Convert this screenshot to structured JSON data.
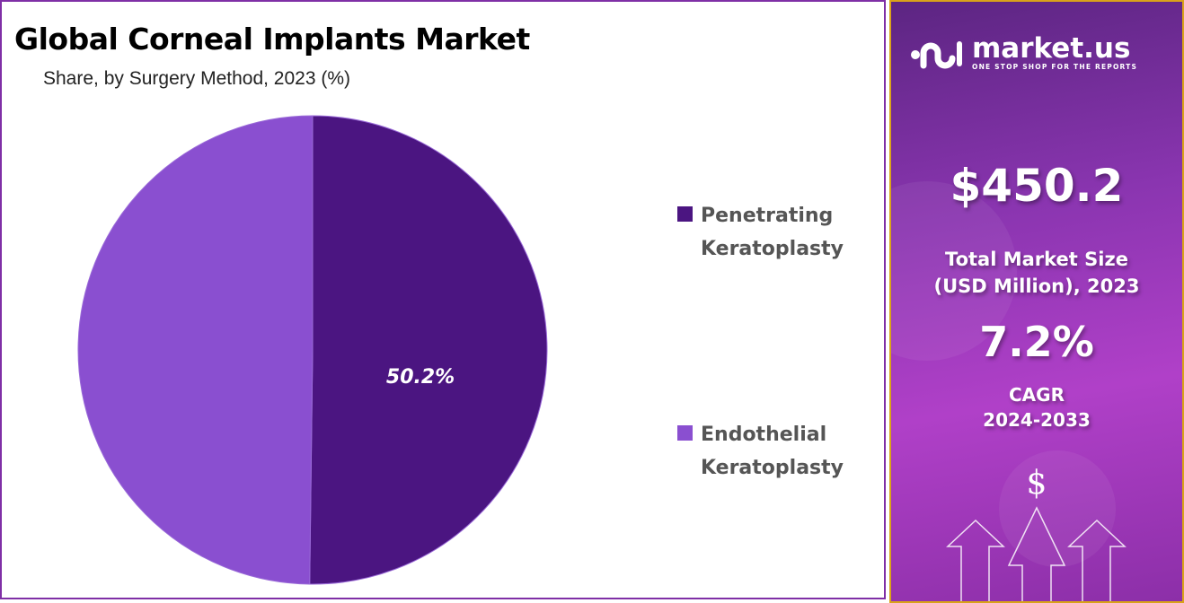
{
  "chart_data": {
    "type": "pie",
    "title": "Global Corneal Implants Market",
    "subtitle": "Share, by Surgery Method, 2023 (%)",
    "slices": [
      {
        "name": "Penetrating Keratoplasty",
        "value": 50.2,
        "label": "50.2%",
        "color": "#4b1581"
      },
      {
        "name": "Endothelial Keratoplasty",
        "value": 49.8,
        "color": "#8a4fd0"
      }
    ],
    "legend_placement": "right",
    "start_angle": "top, clockwise"
  },
  "side_panel": {
    "brand": "market.us",
    "tagline": "ONE STOP SHOP FOR THE REPORTS",
    "market_value": "$450.2",
    "market_value_label_1": "Total Market Size",
    "market_value_label_2": "(USD Million), 2023",
    "cagr": "7.2%",
    "cagr_label_1": "CAGR",
    "cagr_label_2": "2024-2033",
    "dollar_symbol": "$",
    "border_color": "#d9a21a",
    "icons": [
      "logo-mark-icon",
      "dollar-icon",
      "up-arrow-icon"
    ]
  }
}
